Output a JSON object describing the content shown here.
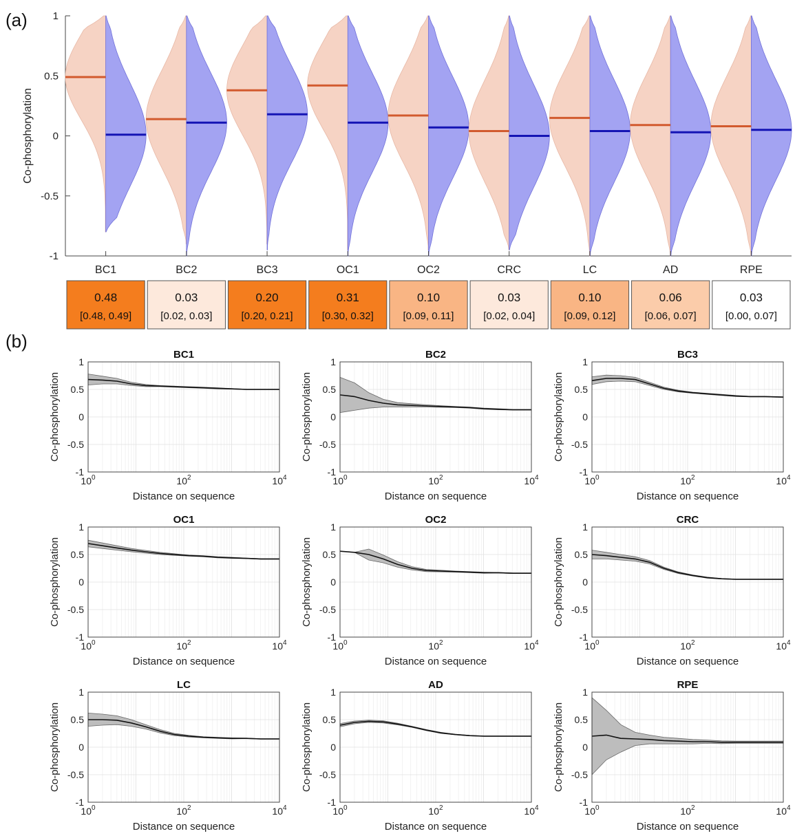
{
  "panel_labels": {
    "a": "(a)",
    "b": "(b)"
  },
  "chart_data": [
    {
      "type": "violin",
      "ylabel": "Co-phosphorylation",
      "ylim": [
        -1,
        1
      ],
      "yticks": [
        1,
        0.5,
        0,
        -0.5,
        -1
      ],
      "ytick_labels": [
        "1",
        "0.5",
        "0",
        "-0.5",
        "-1"
      ],
      "categories": [
        "BC1",
        "BC2",
        "BC3",
        "OC1",
        "OC2",
        "CRC",
        "LC",
        "AD",
        "RPE"
      ],
      "colors": {
        "left_fill": "#f6d3c4",
        "left_line": "#d25a2e",
        "right_fill": "#a3a3f2",
        "right_line": "#1414b4"
      },
      "series": [
        {
          "side": "left",
          "means": [
            0.49,
            0.14,
            0.38,
            0.42,
            0.17,
            0.04,
            0.15,
            0.09,
            0.08
          ]
        },
        {
          "side": "right",
          "means": [
            0.01,
            0.11,
            0.18,
            0.11,
            0.07,
            0.0,
            0.04,
            0.03,
            0.05
          ]
        }
      ],
      "left_ranges": [
        [
          -0.8,
          1.0
        ],
        [
          -0.9,
          1.0
        ],
        [
          -0.9,
          1.0
        ],
        [
          -0.95,
          1.0
        ],
        [
          -0.95,
          1.0
        ],
        [
          -0.95,
          1.0
        ],
        [
          -1.0,
          1.0
        ],
        [
          -1.0,
          1.0
        ],
        [
          -1.0,
          1.0
        ]
      ],
      "right_ranges": [
        [
          -0.8,
          1.0
        ],
        [
          -1.0,
          1.0
        ],
        [
          -0.95,
          1.0
        ],
        [
          -1.0,
          1.0
        ],
        [
          -1.0,
          1.0
        ],
        [
          -0.95,
          1.0
        ],
        [
          -1.0,
          1.0
        ],
        [
          -1.0,
          1.0
        ],
        [
          -1.0,
          1.0
        ]
      ],
      "difference_boxes": [
        {
          "value": "0.48",
          "ci": "[0.48, 0.49]",
          "color": "#f47d1e"
        },
        {
          "value": "0.03",
          "ci": "[0.02, 0.03]",
          "color": "#fde9dc"
        },
        {
          "value": "0.20",
          "ci": "[0.20, 0.21]",
          "color": "#f47d1e"
        },
        {
          "value": "0.31",
          "ci": "[0.30, 0.32]",
          "color": "#f47d1e"
        },
        {
          "value": "0.10",
          "ci": "[0.09, 0.11]",
          "color": "#f9b584"
        },
        {
          "value": "0.03",
          "ci": "[0.02, 0.04]",
          "color": "#fde9dc"
        },
        {
          "value": "0.10",
          "ci": "[0.09, 0.12]",
          "color": "#f9b584"
        },
        {
          "value": "0.06",
          "ci": "[0.06, 0.07]",
          "color": "#fbccaa"
        },
        {
          "value": "0.03",
          "ci": "[0.00, 0.07]",
          "color": "#ffffff"
        }
      ]
    },
    {
      "type": "line",
      "xscale": "log",
      "xlabel": "Distance on sequence",
      "ylabel": "Co-phosphorylation",
      "xlim": [
        1,
        10000
      ],
      "ylim": [
        -1,
        1
      ],
      "xtick_labels": [
        {
          "base": "10",
          "exp": "0"
        },
        {
          "base": "10",
          "exp": "2"
        },
        {
          "base": "10",
          "exp": "4"
        }
      ],
      "ytick_labels": [
        "1",
        "0.5",
        "0",
        "-0.5",
        "-1"
      ],
      "grid": true,
      "colors": {
        "line": "#111111",
        "band": "#bdbdbd"
      },
      "x": [
        1,
        2,
        4,
        8,
        16,
        32,
        64,
        128,
        256,
        512,
        1024,
        2048,
        4096,
        10000
      ],
      "subplots": [
        {
          "title": "BC1",
          "y": [
            0.68,
            0.67,
            0.65,
            0.6,
            0.57,
            0.56,
            0.55,
            0.54,
            0.53,
            0.52,
            0.51,
            0.5,
            0.5,
            0.5
          ],
          "band": [
            0.1,
            0.07,
            0.05,
            0.03,
            0.02,
            0.01,
            0.01,
            0.01,
            0.01,
            0.01,
            0.005,
            0.005,
            0.005,
            0.005
          ]
        },
        {
          "title": "BC2",
          "y": [
            0.4,
            0.37,
            0.3,
            0.25,
            0.22,
            0.21,
            0.2,
            0.19,
            0.18,
            0.17,
            0.15,
            0.14,
            0.13,
            0.13
          ],
          "band": [
            0.32,
            0.25,
            0.14,
            0.07,
            0.04,
            0.03,
            0.02,
            0.015,
            0.01,
            0.01,
            0.01,
            0.01,
            0.005,
            0.005
          ]
        },
        {
          "title": "BC3",
          "y": [
            0.66,
            0.7,
            0.7,
            0.68,
            0.6,
            0.52,
            0.47,
            0.44,
            0.42,
            0.4,
            0.38,
            0.37,
            0.37,
            0.36
          ],
          "band": [
            0.07,
            0.06,
            0.05,
            0.04,
            0.03,
            0.02,
            0.015,
            0.01,
            0.01,
            0.01,
            0.01,
            0.005,
            0.005,
            0.005
          ]
        },
        {
          "title": "OC1",
          "y": [
            0.7,
            0.66,
            0.62,
            0.58,
            0.55,
            0.52,
            0.5,
            0.48,
            0.47,
            0.45,
            0.44,
            0.43,
            0.42,
            0.42
          ],
          "band": [
            0.06,
            0.05,
            0.04,
            0.03,
            0.025,
            0.02,
            0.015,
            0.01,
            0.01,
            0.01,
            0.01,
            0.005,
            0.005,
            0.005
          ]
        },
        {
          "title": "OC2",
          "y": [
            0.56,
            0.54,
            0.5,
            0.42,
            0.32,
            0.25,
            0.21,
            0.2,
            0.19,
            0.18,
            0.17,
            0.17,
            0.16,
            0.16
          ],
          "band": [
            0.0,
            0.0,
            0.1,
            0.07,
            0.05,
            0.03,
            0.02,
            0.015,
            0.01,
            0.01,
            0.01,
            0.005,
            0.005,
            0.005
          ]
        },
        {
          "title": "CRC",
          "y": [
            0.5,
            0.48,
            0.45,
            0.42,
            0.36,
            0.25,
            0.17,
            0.12,
            0.08,
            0.06,
            0.05,
            0.05,
            0.05,
            0.05
          ],
          "band": [
            0.08,
            0.06,
            0.05,
            0.04,
            0.03,
            0.02,
            0.015,
            0.01,
            0.01,
            0.005,
            0.005,
            0.005,
            0.005,
            0.005
          ]
        },
        {
          "title": "LC",
          "y": [
            0.5,
            0.5,
            0.49,
            0.44,
            0.37,
            0.29,
            0.23,
            0.2,
            0.18,
            0.17,
            0.16,
            0.16,
            0.15,
            0.15
          ],
          "band": [
            0.12,
            0.1,
            0.08,
            0.06,
            0.04,
            0.03,
            0.02,
            0.015,
            0.01,
            0.01,
            0.01,
            0.005,
            0.005,
            0.005
          ]
        },
        {
          "title": "AD",
          "y": [
            0.4,
            0.45,
            0.47,
            0.46,
            0.42,
            0.37,
            0.31,
            0.26,
            0.23,
            0.21,
            0.2,
            0.2,
            0.2,
            0.2
          ],
          "band": [
            0.03,
            0.025,
            0.02,
            0.02,
            0.015,
            0.01,
            0.01,
            0.01,
            0.005,
            0.005,
            0.005,
            0.005,
            0.005,
            0.005
          ]
        },
        {
          "title": "RPE",
          "y": [
            0.2,
            0.22,
            0.16,
            0.15,
            0.14,
            0.12,
            0.11,
            0.1,
            0.1,
            0.09,
            0.09,
            0.09,
            0.09,
            0.09
          ],
          "band": [
            0.7,
            0.45,
            0.25,
            0.12,
            0.08,
            0.06,
            0.05,
            0.04,
            0.03,
            0.025,
            0.02,
            0.02,
            0.02,
            0.02
          ]
        }
      ]
    }
  ]
}
